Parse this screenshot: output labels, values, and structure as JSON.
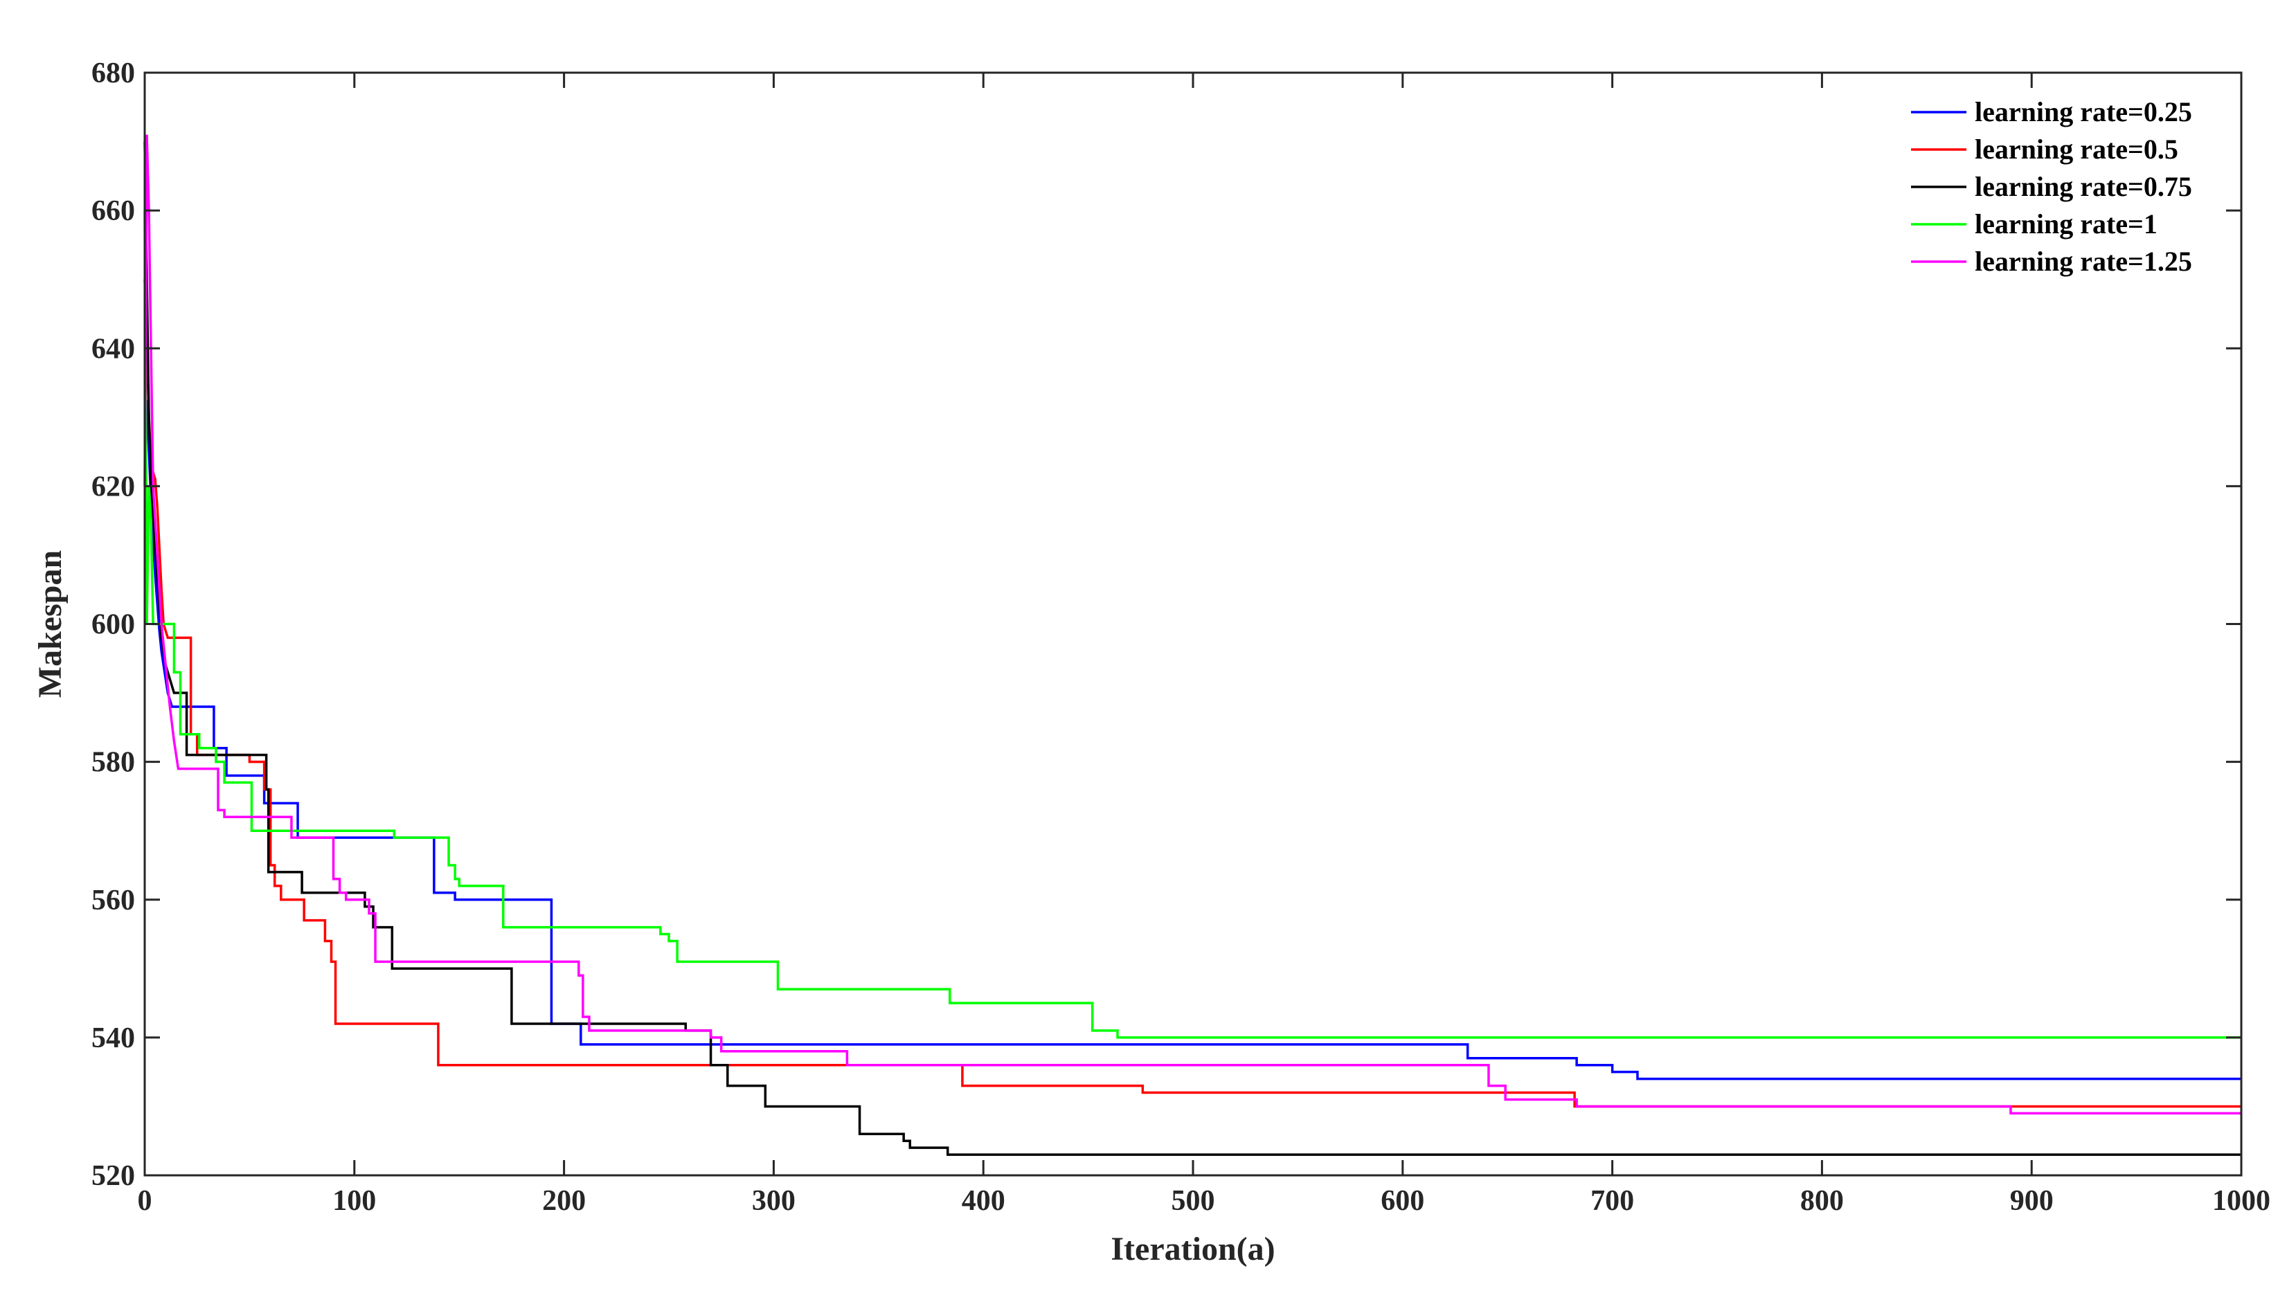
{
  "chart_data": {
    "type": "line",
    "title": "",
    "xlabel": "Iteration(a)",
    "ylabel": "Makespan",
    "xlim": [
      0,
      1000
    ],
    "ylim": [
      520,
      680
    ],
    "xticks": [
      0,
      100,
      200,
      300,
      400,
      500,
      600,
      700,
      800,
      900,
      1000
    ],
    "yticks": [
      520,
      540,
      560,
      580,
      600,
      620,
      640,
      660,
      680
    ],
    "grid": false,
    "legend_position": "top-right",
    "series": [
      {
        "name": "learning rate=0.25",
        "color": "#0000ff",
        "x": [
          0,
          1,
          2,
          3,
          4,
          5,
          6,
          7,
          8,
          9,
          10,
          11,
          12,
          13,
          15,
          33,
          33,
          39,
          39,
          57,
          57,
          73,
          73,
          118,
          118,
          138,
          138,
          148,
          148,
          194,
          194,
          208,
          208,
          269,
          269,
          631,
          631,
          683,
          683,
          700,
          700,
          705,
          705,
          712,
          712,
          1000
        ],
        "y": [
          633,
          632,
          625,
          618,
          612,
          607,
          603,
          599,
          596,
          594,
          592,
          590,
          589,
          588,
          588,
          588,
          582,
          582,
          578,
          578,
          574,
          574,
          569,
          569,
          569,
          569,
          561,
          561,
          560,
          560,
          542,
          542,
          539,
          539,
          539,
          539,
          537,
          537,
          536,
          536,
          535,
          535,
          535,
          535,
          534,
          534
        ]
      },
      {
        "name": "learning rate=0.5",
        "color": "#ff0000",
        "x": [
          0,
          1,
          2,
          3,
          4,
          5,
          6,
          7,
          8,
          9,
          10,
          11,
          12,
          15,
          22,
          22,
          25,
          25,
          50,
          50,
          57,
          57,
          60,
          60,
          62,
          62,
          65,
          65,
          76,
          76,
          86,
          86,
          89,
          89,
          91,
          91,
          140,
          140,
          386,
          386,
          390,
          390,
          476,
          476,
          682,
          682,
          1000
        ],
        "y": [
          650,
          640,
          630,
          624,
          622,
          621,
          617,
          611,
          605,
          600,
          599,
          598,
          598,
          598,
          598,
          584,
          584,
          581,
          581,
          580,
          580,
          576,
          576,
          565,
          565,
          562,
          562,
          560,
          560,
          557,
          557,
          554,
          554,
          551,
          551,
          542,
          542,
          536,
          536,
          536,
          536,
          533,
          533,
          532,
          532,
          530,
          530
        ]
      },
      {
        "name": "learning rate=0.75",
        "color": "#000000",
        "x": [
          0,
          1,
          2,
          3,
          4,
          5,
          6,
          7,
          8,
          9,
          10,
          11,
          12,
          14,
          20,
          20,
          58,
          58,
          59,
          59,
          75,
          75,
          105,
          105,
          109,
          109,
          118,
          118,
          175,
          175,
          258,
          258,
          270,
          270,
          278,
          278,
          296,
          296,
          341,
          341,
          362,
          362,
          365,
          365,
          369,
          369,
          383,
          383,
          1000
        ],
        "y": [
          670,
          650,
          630,
          621,
          616,
          611,
          607,
          603,
          598,
          596,
          594,
          593,
          592,
          590,
          590,
          581,
          581,
          576,
          576,
          564,
          564,
          561,
          561,
          559,
          559,
          556,
          556,
          550,
          550,
          542,
          542,
          541,
          541,
          536,
          536,
          533,
          533,
          530,
          530,
          526,
          526,
          525,
          525,
          524,
          524,
          524,
          524,
          523,
          523
        ]
      },
      {
        "name": "learning rate=1",
        "color": "#00ff00",
        "x": [
          0,
          1,
          2,
          3,
          4,
          5,
          10,
          14,
          14,
          17,
          17,
          26,
          26,
          34,
          34,
          38,
          38,
          51,
          51,
          119,
          119,
          145,
          145,
          148,
          148,
          150,
          150,
          156,
          156,
          171,
          171,
          246,
          246,
          250,
          250,
          254,
          254,
          257,
          257,
          302,
          302,
          384,
          384,
          452,
          452,
          464,
          464,
          1000
        ],
        "y": [
          660,
          600,
          620,
          615,
          600,
          600,
          600,
          600,
          593,
          593,
          584,
          584,
          582,
          582,
          580,
          580,
          577,
          577,
          570,
          570,
          569,
          569,
          565,
          565,
          563,
          563,
          562,
          562,
          562,
          562,
          556,
          556,
          555,
          555,
          554,
          554,
          551,
          551,
          551,
          551,
          547,
          547,
          545,
          545,
          541,
          541,
          540,
          540
        ]
      },
      {
        "name": "learning rate=1.25",
        "color": "#ff00ff",
        "x": [
          0,
          1,
          2,
          3,
          4,
          6,
          8,
          10,
          12,
          14,
          16,
          35,
          35,
          38,
          38,
          70,
          70,
          90,
          90,
          93,
          93,
          96,
          96,
          107,
          107,
          110,
          110,
          207,
          207,
          209,
          209,
          212,
          212,
          270,
          270,
          275,
          275,
          335,
          335,
          641,
          641,
          649,
          649,
          683,
          683,
          890,
          890,
          1000
        ],
        "y": [
          620,
          671,
          660,
          640,
          620,
          610,
          600,
          594,
          588,
          583,
          579,
          579,
          573,
          573,
          572,
          572,
          569,
          569,
          563,
          563,
          561,
          561,
          560,
          560,
          558,
          558,
          551,
          551,
          549,
          549,
          543,
          543,
          541,
          541,
          540,
          540,
          538,
          538,
          536,
          536,
          533,
          533,
          531,
          531,
          530,
          530,
          529,
          529
        ]
      }
    ]
  }
}
